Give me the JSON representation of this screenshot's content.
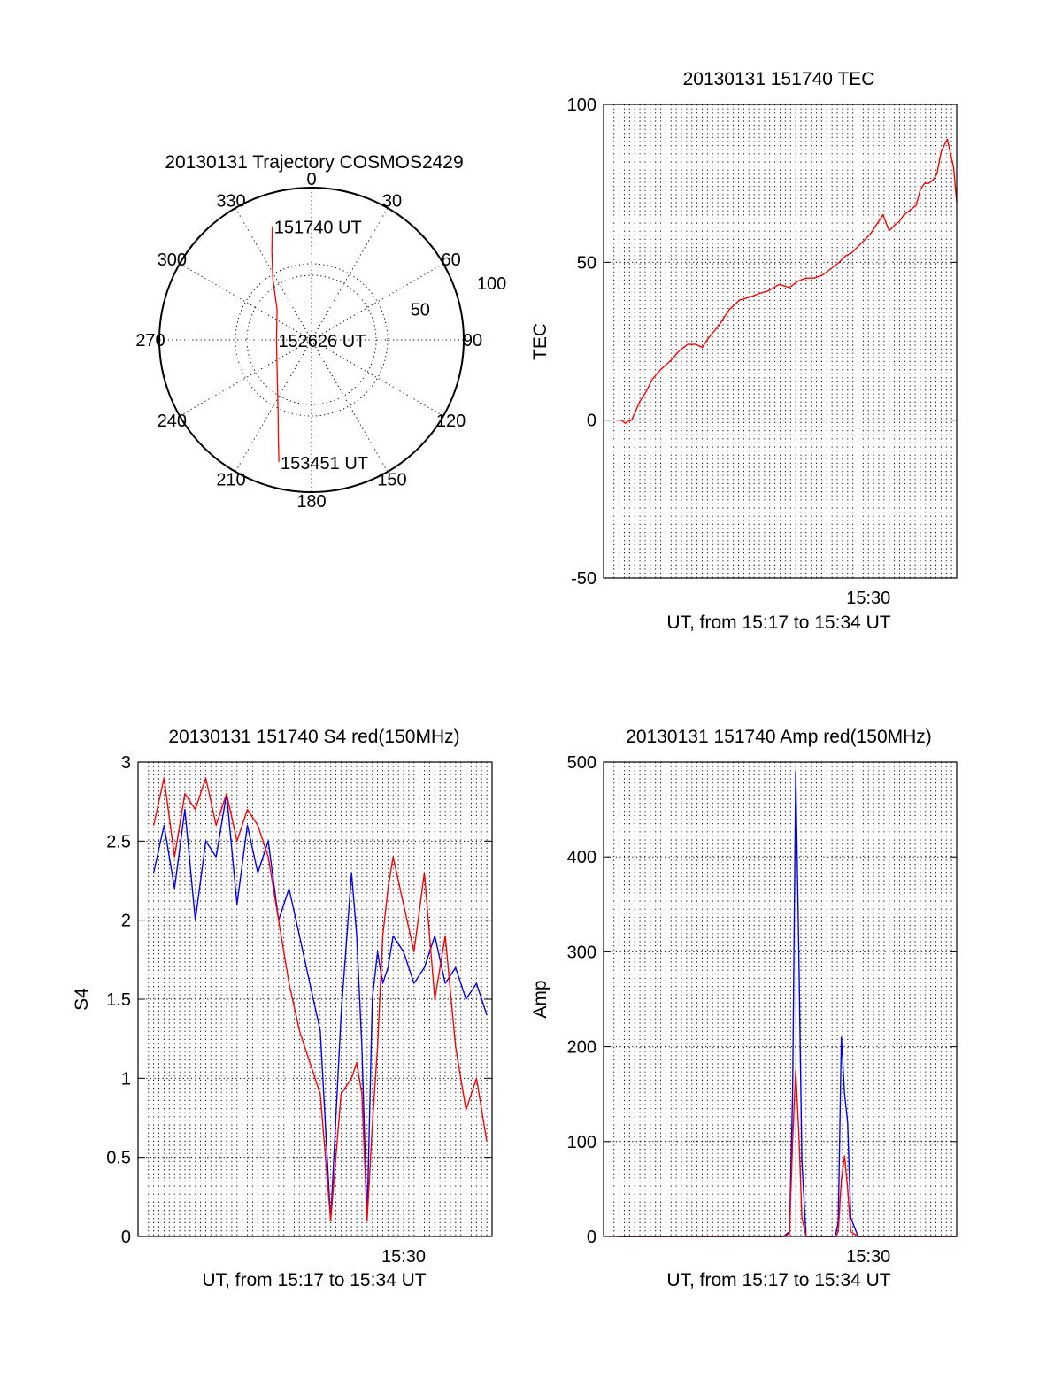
{
  "colors": {
    "primary": "#ff0000",
    "secondary": "#0000ff",
    "axes": "#000000",
    "background": "#ffffff"
  },
  "chart_data": [
    {
      "id": "trajectory",
      "type": "polar",
      "title": "20130131 Trajectory COSMOS2429",
      "azimuth_labels": [
        "0",
        "30",
        "60",
        "90",
        "120",
        "150",
        "180",
        "210",
        "240",
        "270",
        "300",
        "330"
      ],
      "radial_ticks": [
        {
          "value": 50,
          "label": "50"
        },
        {
          "value": 100,
          "label": "100"
        }
      ],
      "rlim": [
        0,
        100
      ],
      "grid": true,
      "series": [
        {
          "color": "#ff0000",
          "points_az_r": [
            [
              -19,
              79
            ],
            [
              -24,
              64
            ],
            [
              -32,
              48
            ],
            [
              -49,
              30
            ],
            [
              -90,
              23
            ],
            [
              -137,
              33
            ],
            [
              -155,
              52
            ],
            [
              -161,
              67
            ],
            [
              -165,
              83
            ]
          ]
        }
      ],
      "annotations": [
        {
          "text": "151740 UT",
          "az": -19,
          "r": 79
        },
        {
          "text": "152626 UT",
          "az": -90,
          "r": 23
        },
        {
          "text": "153451 UT",
          "az": -165,
          "r": 83
        }
      ]
    },
    {
      "id": "tec",
      "type": "line",
      "title": "20130131 151740 TEC",
      "xlabel": "UT, from 15:17 to 15:34 UT",
      "ylabel": "TEC",
      "xlim": [
        15.245,
        15.585
      ],
      "ylim": [
        -50,
        100
      ],
      "yticks": [
        -50,
        0,
        50,
        100
      ],
      "xticks": [
        {
          "value": 15.5,
          "label": "15:30"
        }
      ],
      "grid": true,
      "series": [
        {
          "color": "#ff0000",
          "x": [
            15.258,
            15.262,
            15.266,
            15.268,
            15.272,
            15.276,
            15.28,
            15.286,
            15.292,
            15.3,
            15.31,
            15.318,
            15.326,
            15.334,
            15.34,
            15.346,
            15.356,
            15.366,
            15.376,
            15.386,
            15.394,
            15.404,
            15.414,
            15.424,
            15.432,
            15.44,
            15.448,
            15.456,
            15.464,
            15.472,
            15.478,
            15.484,
            15.49,
            15.496,
            15.502,
            15.508,
            15.514,
            15.52,
            15.526,
            15.53,
            15.534,
            15.538,
            15.542,
            15.546,
            15.55,
            15.554,
            15.558,
            15.562,
            15.566,
            15.57,
            15.576,
            15.582,
            15.585
          ],
          "y": [
            0,
            0,
            -1,
            -0.5,
            0,
            3,
            6,
            9,
            13,
            16,
            19,
            22,
            24,
            24,
            23,
            26,
            30,
            35,
            38,
            39,
            40,
            41,
            43,
            42,
            44,
            45,
            45,
            46,
            48,
            50,
            52,
            53,
            55,
            57,
            59,
            62,
            65,
            60,
            62,
            63,
            65,
            66,
            67,
            68,
            73,
            75,
            75,
            76,
            78,
            85,
            89,
            80,
            69
          ]
        }
      ]
    },
    {
      "id": "s4",
      "type": "line",
      "title": "20130131 151740 S4 red(150MHz)",
      "xlabel": "UT, from 15:17 to 15:34 UT",
      "ylabel": "S4",
      "xlim": [
        15.245,
        15.585
      ],
      "ylim": [
        0,
        3
      ],
      "yticks": [
        0,
        0.5,
        1,
        1.5,
        2,
        2.5,
        3
      ],
      "xticks": [
        {
          "value": 15.5,
          "label": "15:30"
        }
      ],
      "grid": true,
      "series": [
        {
          "color": "#0000ff",
          "x": [
            15.26,
            15.27,
            15.28,
            15.29,
            15.3,
            15.31,
            15.32,
            15.33,
            15.34,
            15.35,
            15.36,
            15.37,
            15.38,
            15.39,
            15.4,
            15.41,
            15.42,
            15.43,
            15.44,
            15.45,
            15.455,
            15.46,
            15.465,
            15.47,
            15.475,
            15.48,
            15.485,
            15.49,
            15.5,
            15.51,
            15.52,
            15.53,
            15.54,
            15.55,
            15.56,
            15.57,
            15.58
          ],
          "y": [
            2.3,
            2.6,
            2.2,
            2.7,
            2.0,
            2.5,
            2.4,
            2.8,
            2.1,
            2.6,
            2.3,
            2.5,
            2.0,
            2.2,
            1.9,
            1.6,
            1.3,
            0.1,
            1.4,
            2.3,
            1.9,
            1.2,
            0.1,
            1.5,
            1.8,
            1.6,
            1.7,
            1.9,
            1.8,
            1.6,
            1.7,
            1.9,
            1.6,
            1.7,
            1.5,
            1.6,
            1.4
          ]
        },
        {
          "color": "#ff0000",
          "x": [
            15.26,
            15.27,
            15.28,
            15.29,
            15.3,
            15.31,
            15.32,
            15.33,
            15.34,
            15.35,
            15.36,
            15.37,
            15.38,
            15.39,
            15.4,
            15.41,
            15.42,
            15.43,
            15.44,
            15.45,
            15.455,
            15.46,
            15.465,
            15.47,
            15.475,
            15.48,
            15.485,
            15.49,
            15.5,
            15.51,
            15.52,
            15.53,
            15.54,
            15.55,
            15.56,
            15.57,
            15.58
          ],
          "y": [
            2.6,
            2.9,
            2.4,
            2.8,
            2.7,
            2.9,
            2.6,
            2.8,
            2.5,
            2.7,
            2.6,
            2.4,
            2.0,
            1.6,
            1.3,
            1.1,
            0.9,
            0.1,
            0.9,
            1.0,
            1.1,
            0.9,
            0.1,
            0.7,
            1.2,
            1.9,
            2.2,
            2.4,
            2.1,
            1.8,
            2.3,
            1.5,
            1.9,
            1.2,
            0.8,
            1.0,
            0.6
          ]
        }
      ]
    },
    {
      "id": "amp",
      "type": "line",
      "title": "20130131 151740 Amp red(150MHz)",
      "xlabel": "UT, from 15:17 to 15:34 UT",
      "ylabel": "Amp",
      "xlim": [
        15.245,
        15.585
      ],
      "ylim": [
        0,
        500
      ],
      "yticks": [
        0,
        100,
        200,
        300,
        400,
        500
      ],
      "xticks": [
        {
          "value": 15.5,
          "label": "15:30"
        }
      ],
      "grid": true,
      "series": [
        {
          "color": "#0000ff",
          "x": [
            15.258,
            15.418,
            15.424,
            15.427,
            15.43,
            15.433,
            15.436,
            15.44,
            15.468,
            15.471,
            15.474,
            15.477,
            15.48,
            15.483,
            15.49,
            15.585
          ],
          "y": [
            0,
            0,
            5,
            150,
            490,
            300,
            80,
            0,
            0,
            15,
            210,
            150,
            120,
            20,
            0,
            0
          ]
        },
        {
          "color": "#ff0000",
          "x": [
            15.258,
            15.418,
            15.424,
            15.427,
            15.43,
            15.433,
            15.436,
            15.44,
            15.468,
            15.471,
            15.474,
            15.477,
            15.48,
            15.483,
            15.49,
            15.585
          ],
          "y": [
            0,
            0,
            3,
            100,
            175,
            110,
            20,
            0,
            0,
            5,
            60,
            85,
            50,
            5,
            0,
            0
          ]
        }
      ]
    }
  ]
}
